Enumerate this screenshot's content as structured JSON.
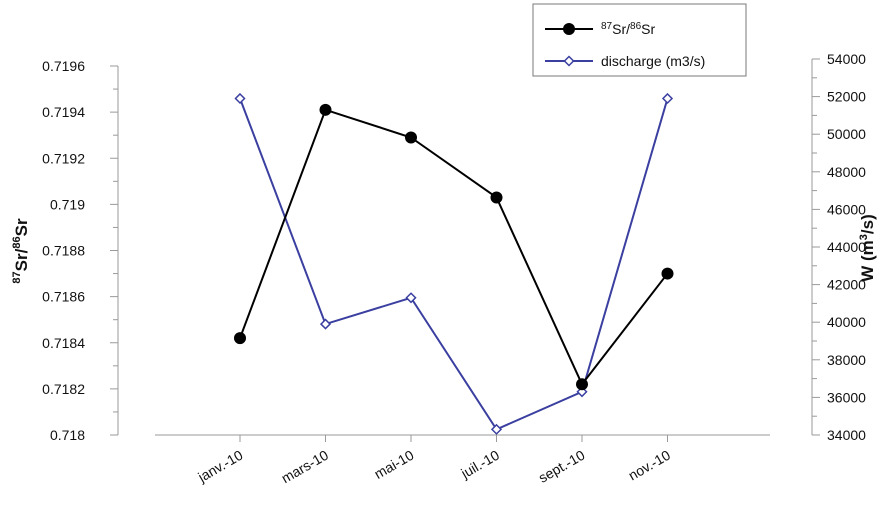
{
  "chart_data": {
    "type": "line",
    "categories": [
      "janv.-10",
      "mars-10",
      "mai-10",
      "juil.-10",
      "sept.-10",
      "nov.-10"
    ],
    "series": [
      {
        "name": "87Sr/86Sr",
        "name_parts": {
          "sup1": "87",
          "base1": "Sr/",
          "sup2": "86",
          "base2": "Sr"
        },
        "axis": "left",
        "color": "#000000",
        "marker": "circle",
        "values": [
          0.71842,
          0.71941,
          0.71929,
          0.71903,
          0.71822,
          0.7187
        ]
      },
      {
        "name": "discharge (m3/s)",
        "axis": "right",
        "color": "#3a3fa0",
        "marker": "diamond",
        "values": [
          51900,
          39900,
          41300,
          34300,
          36300,
          51900
        ]
      }
    ],
    "y_left": {
      "title_parts": {
        "sup1": "87",
        "base1": "Sr/",
        "sup2": "86",
        "base2": "Sr"
      },
      "ylim": [
        0.718,
        0.7196
      ],
      "ticks": [
        "0.718",
        "0.7182",
        "0.7184",
        "0.7186",
        "0.7188",
        "0.719",
        "0.7192",
        "0.7194",
        "0.7196"
      ]
    },
    "y_right": {
      "title_parts": {
        "base1": "W (m",
        "sup1": "3",
        "base2": "/s)"
      },
      "ylim": [
        34000,
        54000
      ],
      "ticks": [
        "34000",
        "36000",
        "38000",
        "40000",
        "42000",
        "44000",
        "46000",
        "48000",
        "50000",
        "52000",
        "54000"
      ]
    },
    "legend": "top-right",
    "grid": false
  }
}
